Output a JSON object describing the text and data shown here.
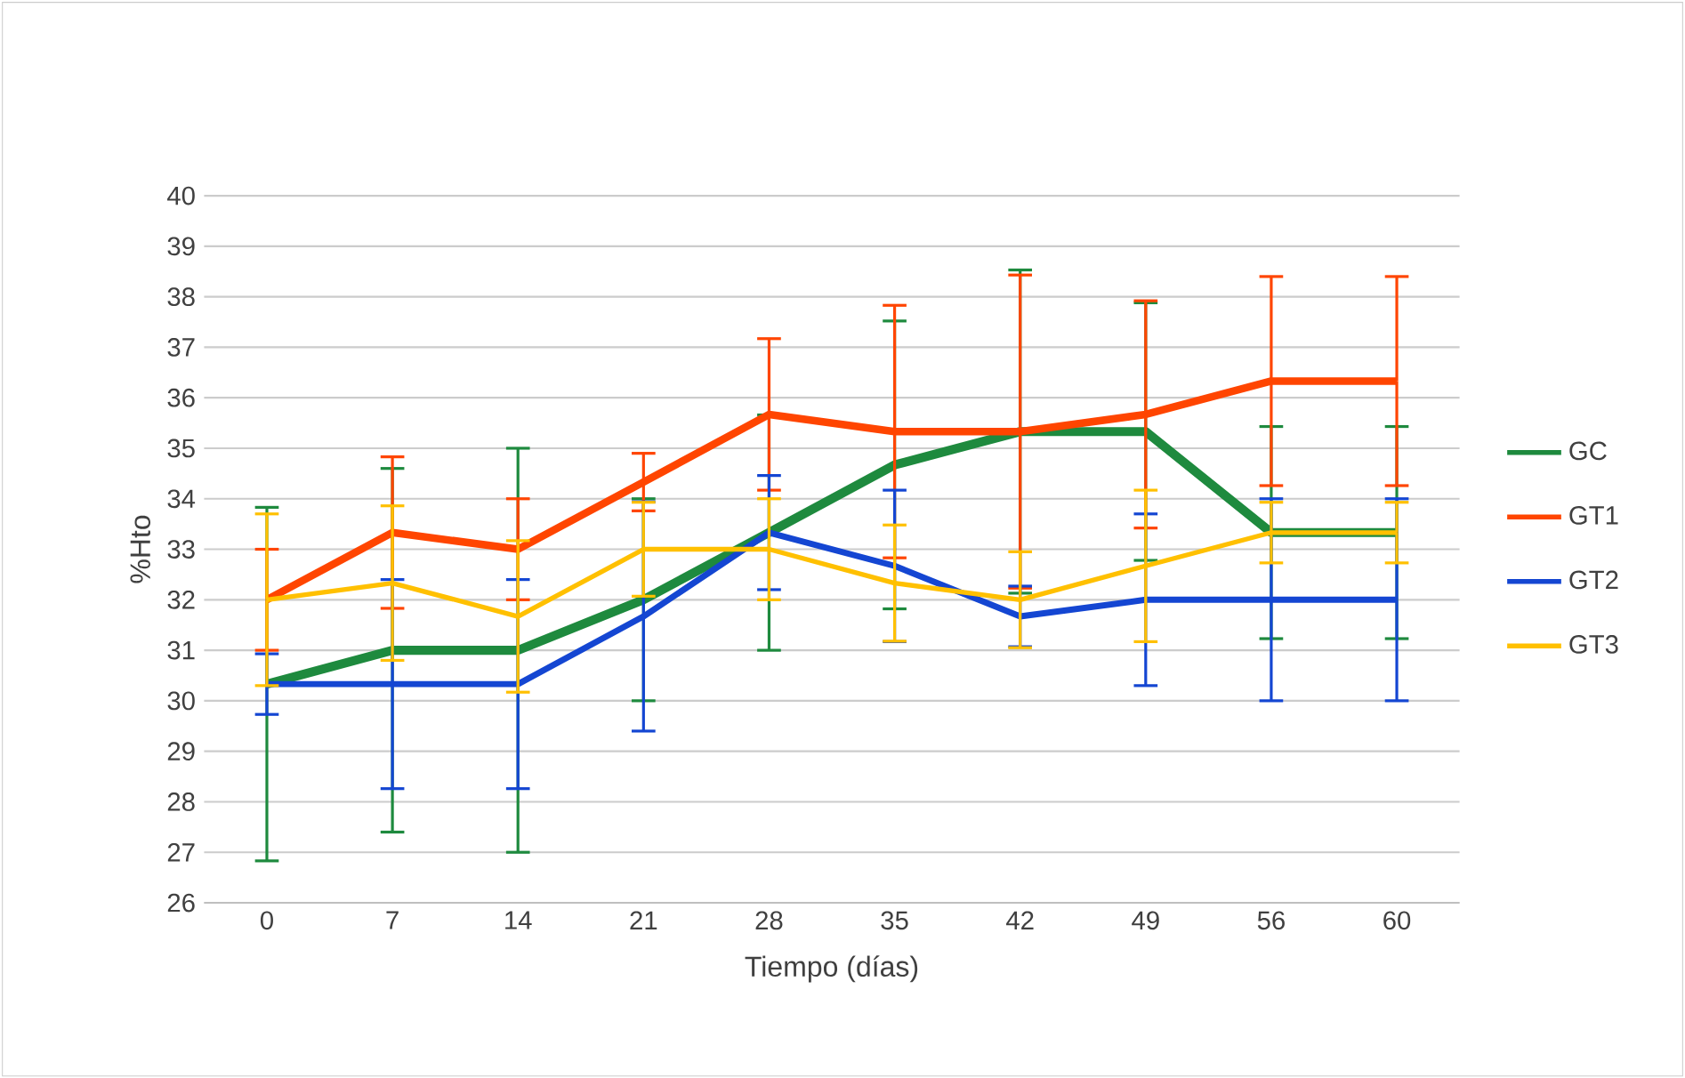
{
  "chart_data": {
    "type": "line",
    "xlabel": "Tiempo (días)",
    "ylabel": "%Hto",
    "categories": [
      "0",
      "7",
      "14",
      "21",
      "28",
      "35",
      "42",
      "49",
      "56",
      "60"
    ],
    "ylim": [
      26,
      40
    ],
    "yticks": [
      26,
      27,
      28,
      29,
      30,
      31,
      32,
      33,
      34,
      35,
      36,
      37,
      38,
      39,
      40
    ],
    "grid": "y",
    "legend": "right",
    "marker": "none",
    "line_style": "solid",
    "series": [
      {
        "name": "GC",
        "color": "#1e8a3e",
        "values": [
          30.33,
          31,
          31,
          32,
          33.33,
          34.67,
          35.33,
          35.33,
          33.33,
          33.33
        ],
        "errors": [
          3.5,
          3.6,
          4,
          2,
          2.33,
          2.85,
          3.2,
          2.55,
          2.1,
          2.1
        ]
      },
      {
        "name": "GT1",
        "color": "#ff4500",
        "values": [
          32,
          33.33,
          33,
          34.33,
          35.67,
          35.33,
          35.33,
          35.67,
          36.33,
          36.33
        ],
        "errors": [
          1,
          1.5,
          1,
          0.57,
          1.5,
          2.5,
          3.1,
          2.25,
          2.07,
          2.07
        ]
      },
      {
        "name": "GT2",
        "color": "#1446d2",
        "values": [
          30.33,
          30.33,
          30.33,
          31.67,
          33.33,
          32.67,
          31.67,
          32,
          32,
          32
        ],
        "errors": [
          0.6,
          2.07,
          2.07,
          2.27,
          1.13,
          1.5,
          0.6,
          1.7,
          2,
          2
        ]
      },
      {
        "name": "GT3",
        "color": "#ffc000",
        "values": [
          32,
          32.33,
          31.67,
          33,
          33,
          32.33,
          32,
          32.67,
          33.33,
          33.33
        ],
        "errors": [
          1.7,
          1.53,
          1.5,
          0.93,
          1,
          1.15,
          0.95,
          1.5,
          0.6,
          0.6
        ]
      }
    ]
  }
}
